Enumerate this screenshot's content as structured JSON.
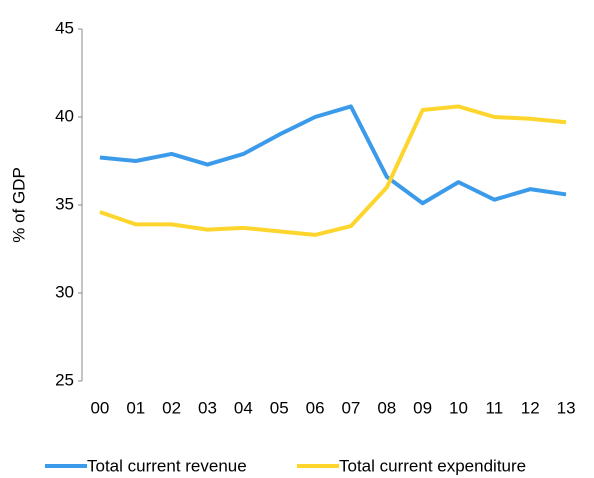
{
  "chart_data": {
    "type": "line",
    "y_label": "% of GDP",
    "categories": [
      "00",
      "01",
      "02",
      "03",
      "04",
      "05",
      "06",
      "07",
      "08",
      "09",
      "10",
      "11",
      "12",
      "13"
    ],
    "series": [
      {
        "name": "Total current revenue",
        "color": "#3b9bea",
        "values": [
          37.7,
          37.5,
          37.9,
          37.3,
          37.9,
          39.0,
          40.0,
          40.6,
          36.6,
          35.1,
          36.3,
          35.3,
          35.9,
          35.6
        ]
      },
      {
        "name": "Total current expenditure",
        "color": "#fdd52c",
        "values": [
          34.6,
          33.9,
          33.9,
          33.6,
          33.7,
          33.5,
          33.3,
          33.8,
          36.0,
          40.4,
          40.6,
          40.0,
          39.9,
          39.7
        ]
      }
    ],
    "ylim": [
      25,
      45
    ],
    "yticks": [
      25,
      30,
      35,
      40,
      45
    ],
    "grid": false
  }
}
